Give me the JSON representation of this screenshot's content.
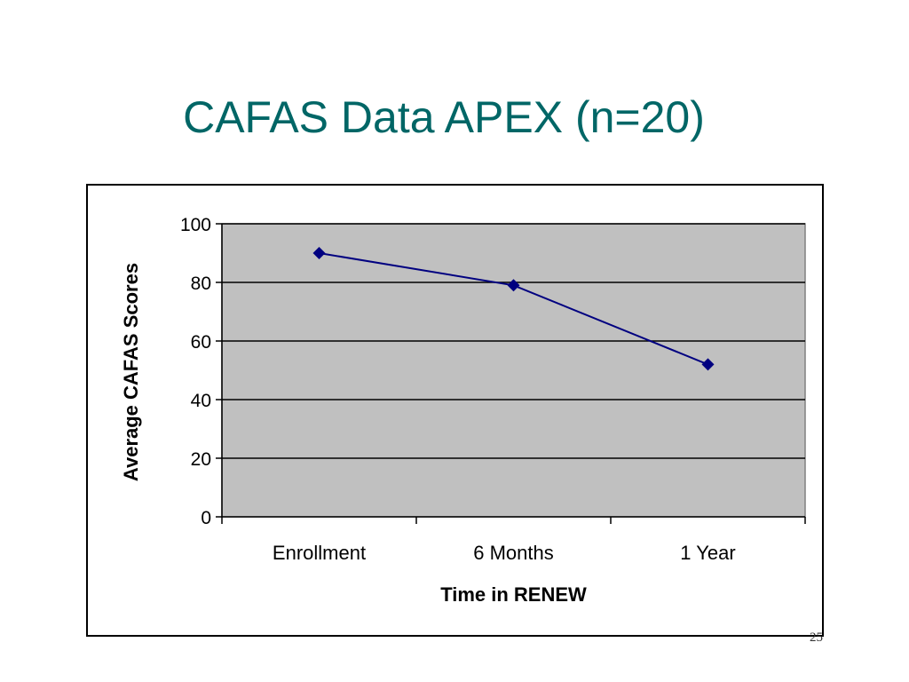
{
  "slide": {
    "title": "CAFAS Data APEX (n=20)",
    "page_number": "25"
  },
  "chart_data": {
    "type": "line",
    "title": "",
    "xlabel": "Time in RENEW",
    "ylabel": "Average CAFAS Scores",
    "categories": [
      "Enrollment",
      "6 Months",
      "1 Year"
    ],
    "series": [
      {
        "values": [
          90,
          79,
          52
        ]
      }
    ],
    "ylim": [
      0,
      100
    ],
    "yticks": [
      "0",
      "20",
      "40",
      "60",
      "80",
      "100"
    ],
    "grid": true,
    "legend": "none",
    "colors": {
      "plot_background": "#c0c0c0",
      "line": "#000080",
      "marker": "#000080",
      "gridline": "#000000"
    }
  }
}
